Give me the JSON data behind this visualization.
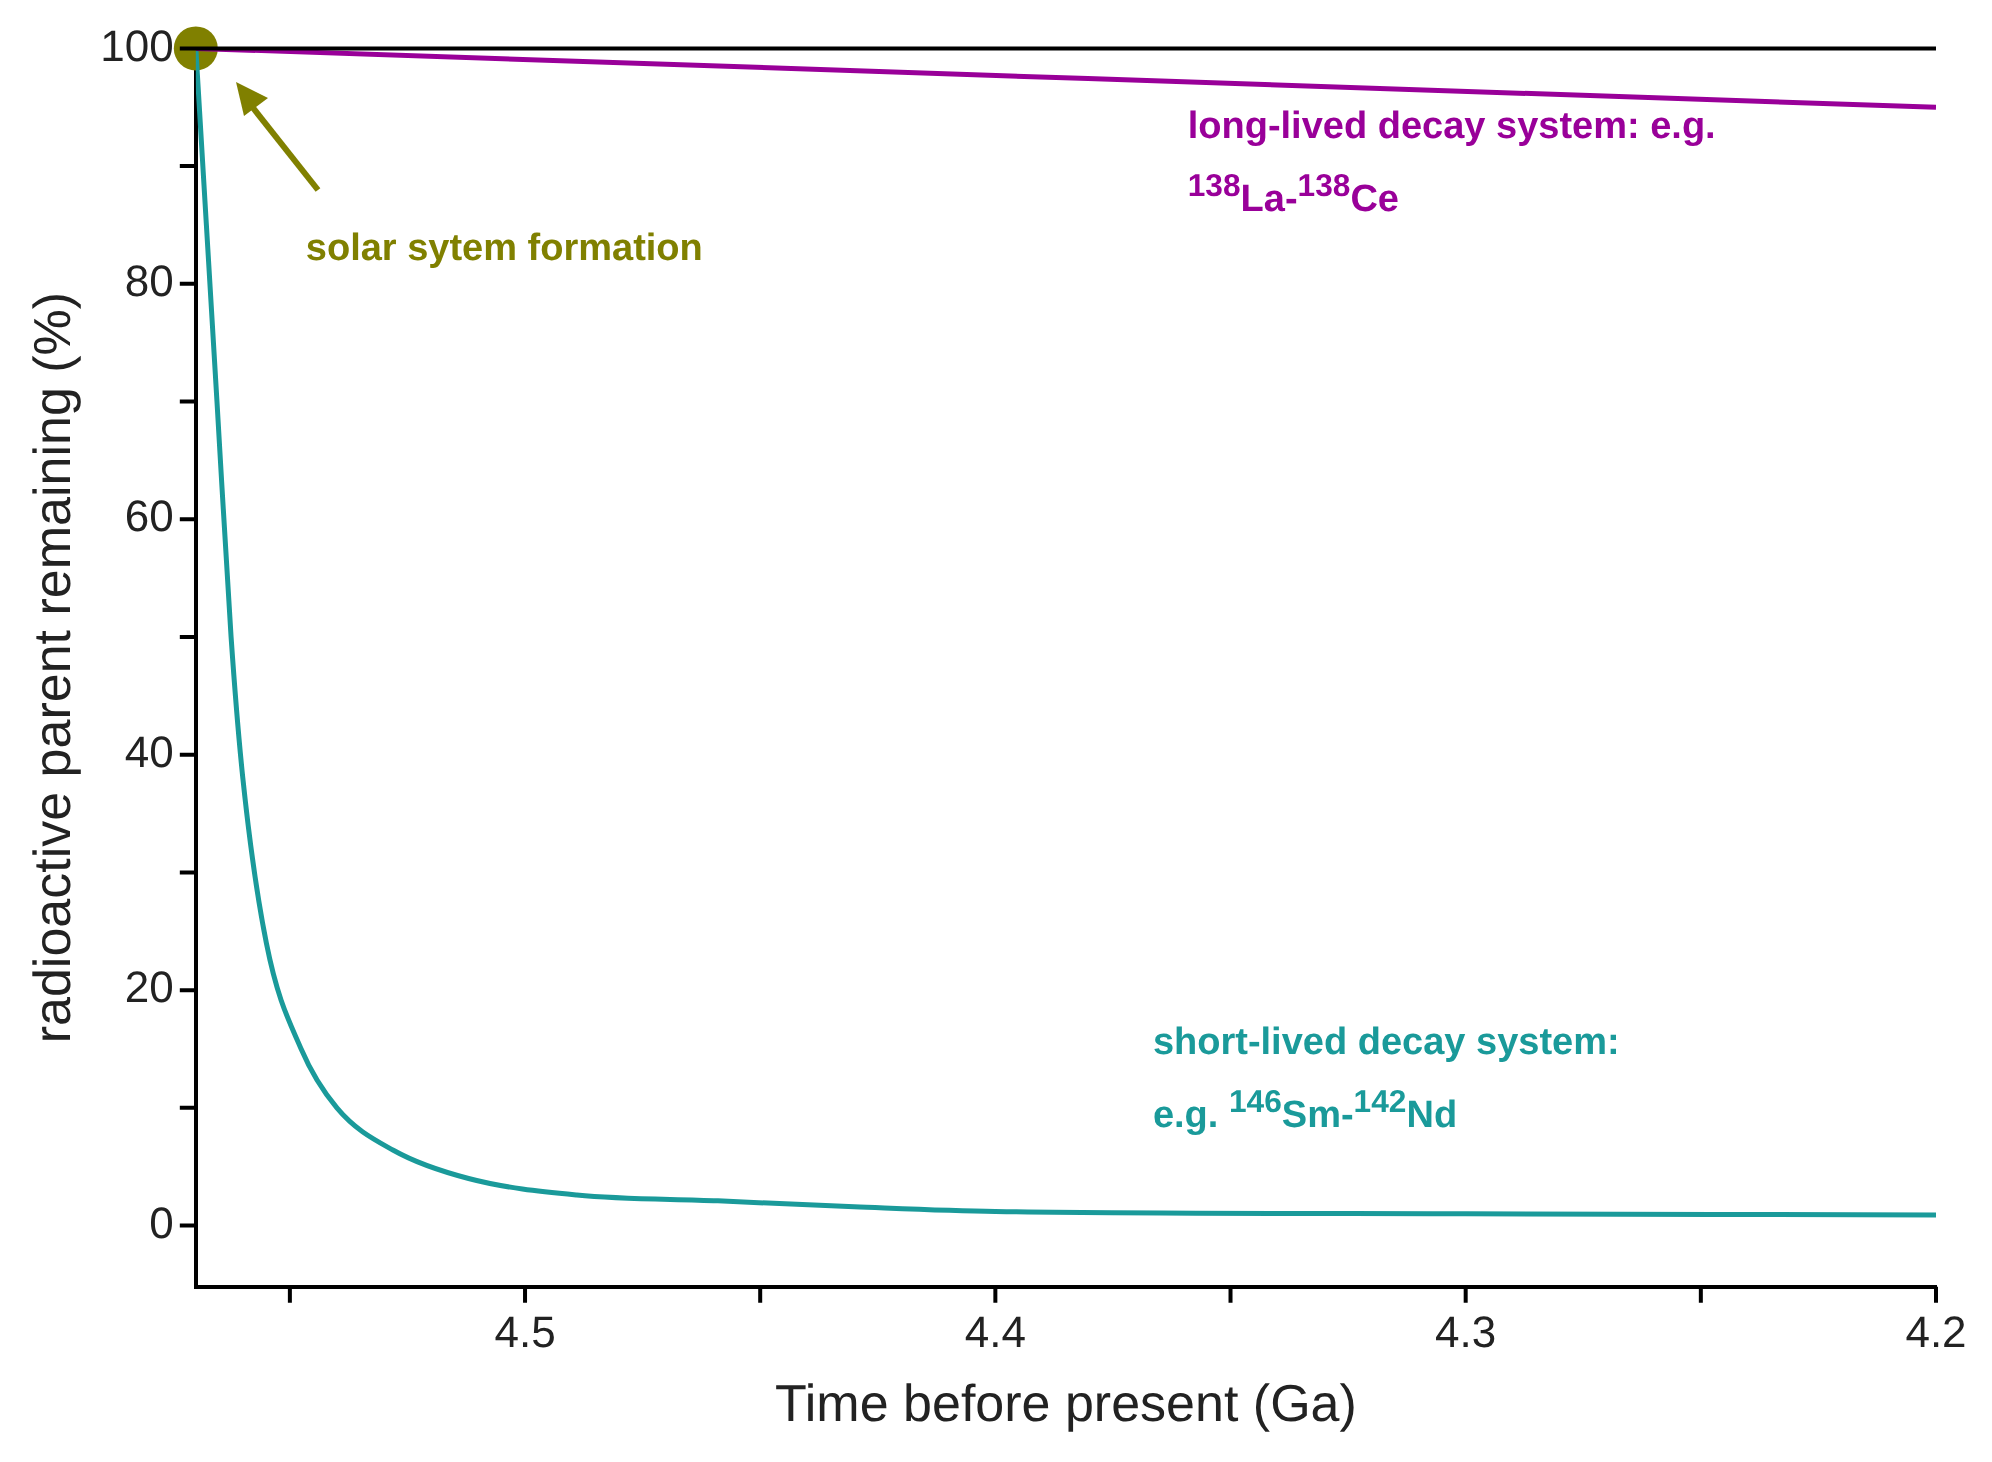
{
  "chart_data": {
    "type": "line",
    "xlabel": "Time before present (Ga)",
    "ylabel": "radioactive parent remaining (%)",
    "xlim": [
      4.57,
      4.2
    ],
    "xticks": [
      {
        "value": 4.55,
        "label": null
      },
      4.5,
      {
        "value": 4.45,
        "label": null
      },
      4.4,
      {
        "value": 4.35,
        "label": null
      },
      4.3,
      {
        "value": 4.25,
        "label": null
      },
      4.2
    ],
    "ylim": [
      -5.2,
      100
    ],
    "yticks": [
      0,
      {
        "value": 10,
        "label": null
      },
      20,
      {
        "value": 30,
        "label": null
      },
      40,
      {
        "value": 50,
        "label": null
      },
      60,
      {
        "value": 70,
        "label": null
      },
      80,
      {
        "value": 90,
        "label": null
      },
      100
    ],
    "series": [
      {
        "name": "long-lived decay system: e.g. $^{138}$La-$^{138}$Ce",
        "color": "#990099",
        "x": [
          4.57,
          4.2
        ],
        "values": [
          100,
          95
        ]
      },
      {
        "name": "short-lived decay system: e.g. $^{146}$Sm-$^{142}$Nd",
        "color": "#1a9a9a",
        "x": [
          4.57,
          4.5655,
          4.5625,
          4.56,
          4.555,
          4.5476,
          4.54,
          4.528,
          4.512,
          4.489,
          4.459,
          4.43,
          4.4,
          4.3,
          4.2
        ],
        "values": [
          100,
          70,
          50,
          38,
          24,
          15,
          10,
          6.4,
          4,
          2.6,
          2.1,
          1.6,
          1.2,
          1,
          0.9
        ]
      },
      {
        "type": "scatter",
        "color": "#808000",
        "x": [
          4.57
        ],
        "values": [
          100
        ]
      }
    ],
    "annotations": [
      "solar sytem formation"
    ]
  }
}
